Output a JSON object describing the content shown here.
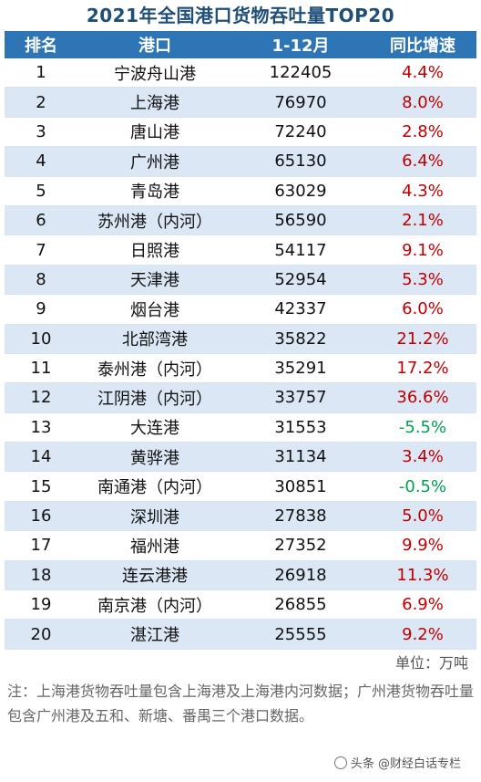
{
  "title": "2021年全国港口货物吞吐量TOP20",
  "headers": {
    "rank": "排名",
    "port": "港口",
    "period": "1-12月",
    "growth": "同比增速"
  },
  "rows": [
    {
      "rank": "1",
      "port": "宁波舟山港",
      "value": "122405",
      "growth": "4.4%",
      "dir": "pos"
    },
    {
      "rank": "2",
      "port": "上海港",
      "value": "76970",
      "growth": "8.0%",
      "dir": "pos"
    },
    {
      "rank": "3",
      "port": "唐山港",
      "value": "72240",
      "growth": "2.8%",
      "dir": "pos"
    },
    {
      "rank": "4",
      "port": "广州港",
      "value": "65130",
      "growth": "6.4%",
      "dir": "pos"
    },
    {
      "rank": "5",
      "port": "青岛港",
      "value": "63029",
      "growth": "4.3%",
      "dir": "pos"
    },
    {
      "rank": "6",
      "port": "苏州港（内河）",
      "value": "56590",
      "growth": "2.1%",
      "dir": "pos"
    },
    {
      "rank": "7",
      "port": "日照港",
      "value": "54117",
      "growth": "9.1%",
      "dir": "pos"
    },
    {
      "rank": "8",
      "port": "天津港",
      "value": "52954",
      "growth": "5.3%",
      "dir": "pos"
    },
    {
      "rank": "9",
      "port": "烟台港",
      "value": "42337",
      "growth": "6.0%",
      "dir": "pos"
    },
    {
      "rank": "10",
      "port": "北部湾港",
      "value": "35822",
      "growth": "21.2%",
      "dir": "pos"
    },
    {
      "rank": "11",
      "port": "泰州港（内河）",
      "value": "35291",
      "growth": "17.2%",
      "dir": "pos"
    },
    {
      "rank": "12",
      "port": "江阴港（内河）",
      "value": "33757",
      "growth": "36.6%",
      "dir": "pos"
    },
    {
      "rank": "13",
      "port": "大连港",
      "value": "31553",
      "growth": "-5.5%",
      "dir": "neg"
    },
    {
      "rank": "14",
      "port": "黄骅港",
      "value": "31134",
      "growth": "3.4%",
      "dir": "pos"
    },
    {
      "rank": "15",
      "port": "南通港（内河）",
      "value": "30851",
      "growth": "-0.5%",
      "dir": "neg"
    },
    {
      "rank": "16",
      "port": "深圳港",
      "value": "27838",
      "growth": "5.0%",
      "dir": "pos"
    },
    {
      "rank": "17",
      "port": "福州港",
      "value": "27352",
      "growth": "9.9%",
      "dir": "pos"
    },
    {
      "rank": "18",
      "port": "连云港港",
      "value": "26918",
      "growth": "11.3%",
      "dir": "pos"
    },
    {
      "rank": "19",
      "port": "南京港（内河）",
      "value": "26855",
      "growth": "6.9%",
      "dir": "pos"
    },
    {
      "rank": "20",
      "port": "湛江港",
      "value": "25555",
      "growth": "9.2%",
      "dir": "pos"
    }
  ],
  "unit": "单位：万吨",
  "note": "注：上海港货物吞吐量包含上海港及上海港内河数据；广州港货物吞吐量包含广州港及五和、新塘、番禺三个港口数据。",
  "watermark": "头条 @财经白话专栏",
  "colors": {
    "header_bg": "#2e75b6",
    "title": "#1f4e79",
    "positive": "#c00000",
    "negative": "#00a050",
    "stripe": "#dbe7f5"
  }
}
